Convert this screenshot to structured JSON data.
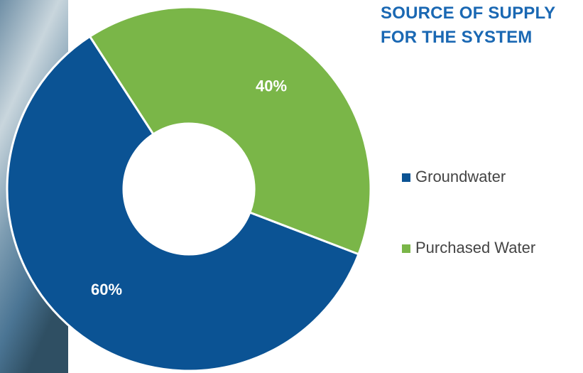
{
  "chart_data": {
    "type": "donut",
    "title": "SOURCE OF SUPPLY FOR THE SYSTEM",
    "categories": [
      "Groundwater",
      "Purchased Water"
    ],
    "values": [
      60,
      40
    ],
    "value_labels": [
      "60%",
      "40%"
    ],
    "colors": [
      "#0b5394",
      "#7ab648"
    ],
    "legend": "right"
  }
}
